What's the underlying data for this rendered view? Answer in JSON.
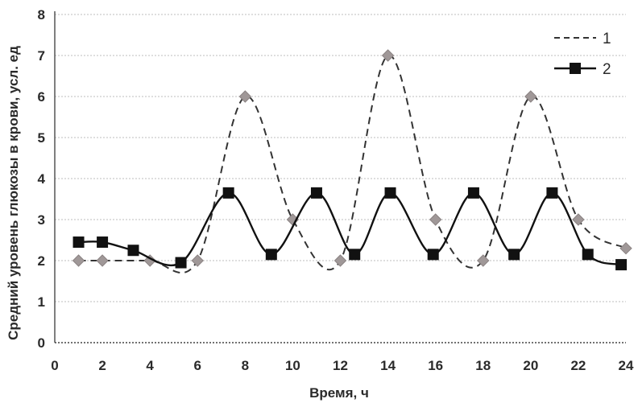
{
  "chart_data": {
    "type": "line",
    "title": "",
    "xlabel": "Время, ч",
    "ylabel": "Средний уровень глюкозы в крови, усл. ед",
    "xlim": [
      0,
      24
    ],
    "ylim": [
      0,
      8
    ],
    "xticks": [
      0,
      2,
      4,
      6,
      8,
      10,
      12,
      14,
      16,
      18,
      20,
      22,
      24
    ],
    "yticks": [
      0,
      1,
      2,
      3,
      4,
      5,
      6,
      7,
      8
    ],
    "grid": "horizontal dotted",
    "legend_position": "top-right",
    "series": [
      {
        "name": "1",
        "line_style": "dashed",
        "marker": "diamond",
        "color": "#333333",
        "marker_color": "#a09898",
        "points": [
          [
            1,
            2.0
          ],
          [
            2,
            2.0
          ],
          [
            4,
            2.0
          ],
          [
            6,
            2.0
          ],
          [
            8,
            6.0
          ],
          [
            10,
            3.0
          ],
          [
            12,
            2.0
          ],
          [
            14,
            7.0
          ],
          [
            16,
            3.0
          ],
          [
            18,
            2.0
          ],
          [
            20,
            6.0
          ],
          [
            22,
            3.0
          ],
          [
            24,
            2.3
          ]
        ]
      },
      {
        "name": "2",
        "line_style": "solid",
        "marker": "square",
        "color": "#111111",
        "marker_color": "#111111",
        "points": [
          [
            1,
            2.45
          ],
          [
            2,
            2.45
          ],
          [
            3.3,
            2.25
          ],
          [
            5.3,
            1.95
          ],
          [
            7.3,
            3.65
          ],
          [
            9.1,
            2.15
          ],
          [
            11,
            3.65
          ],
          [
            12.6,
            2.15
          ],
          [
            14.1,
            3.65
          ],
          [
            15.9,
            2.15
          ],
          [
            17.6,
            3.65
          ],
          [
            19.3,
            2.15
          ],
          [
            20.9,
            3.65
          ],
          [
            22.4,
            2.15
          ],
          [
            23.8,
            1.9
          ]
        ]
      }
    ]
  }
}
